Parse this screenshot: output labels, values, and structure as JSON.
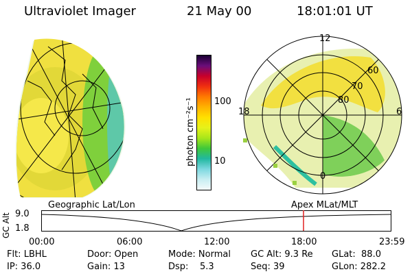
{
  "header": {
    "instrument": "Ultraviolet Imager",
    "date": "21 May 00",
    "time": "18:01:01 UT"
  },
  "left_panel": {
    "label": "Geographic Lat/Lon"
  },
  "right_panel": {
    "label": "Apex MLat/MLT",
    "mlt_labels": [
      "12",
      "18",
      "6",
      "0"
    ],
    "mlat_labels": [
      "60",
      "70",
      "80"
    ]
  },
  "colorbar": {
    "unit_label": "photon cm⁻²s⁻¹",
    "tick_labels": [
      "100",
      "10"
    ],
    "colors": [
      "#1a0033",
      "#6a0d7a",
      "#c8002a",
      "#f03010",
      "#ff7a00",
      "#ffb300",
      "#ffe000",
      "#e6f21a",
      "#a8e61a",
      "#3fc83a",
      "#22b8a0",
      "#7dd8e0",
      "#c8eef2",
      "#f4fafb"
    ]
  },
  "alt_plot": {
    "ylabel": "GC Alt",
    "y_ticks": [
      "9.0",
      "1.8"
    ],
    "x_ticks": [
      "00:00",
      "06:00",
      "12:00",
      "18:00",
      "23:59"
    ],
    "marker_time": "18:00"
  },
  "status": {
    "flt": "Flt: LBHL",
    "ip": "IP: 36.0",
    "door": "Door: Open",
    "gain": "Gain: 13",
    "mode": "Mode: Normal",
    "dsp": "Dsp:    5.3",
    "gc_alt": "GC Alt: 9.3 Re",
    "seq": "Seq: 39",
    "glat": "GLat:  88.0",
    "glon": "GLon: 282.2"
  }
}
